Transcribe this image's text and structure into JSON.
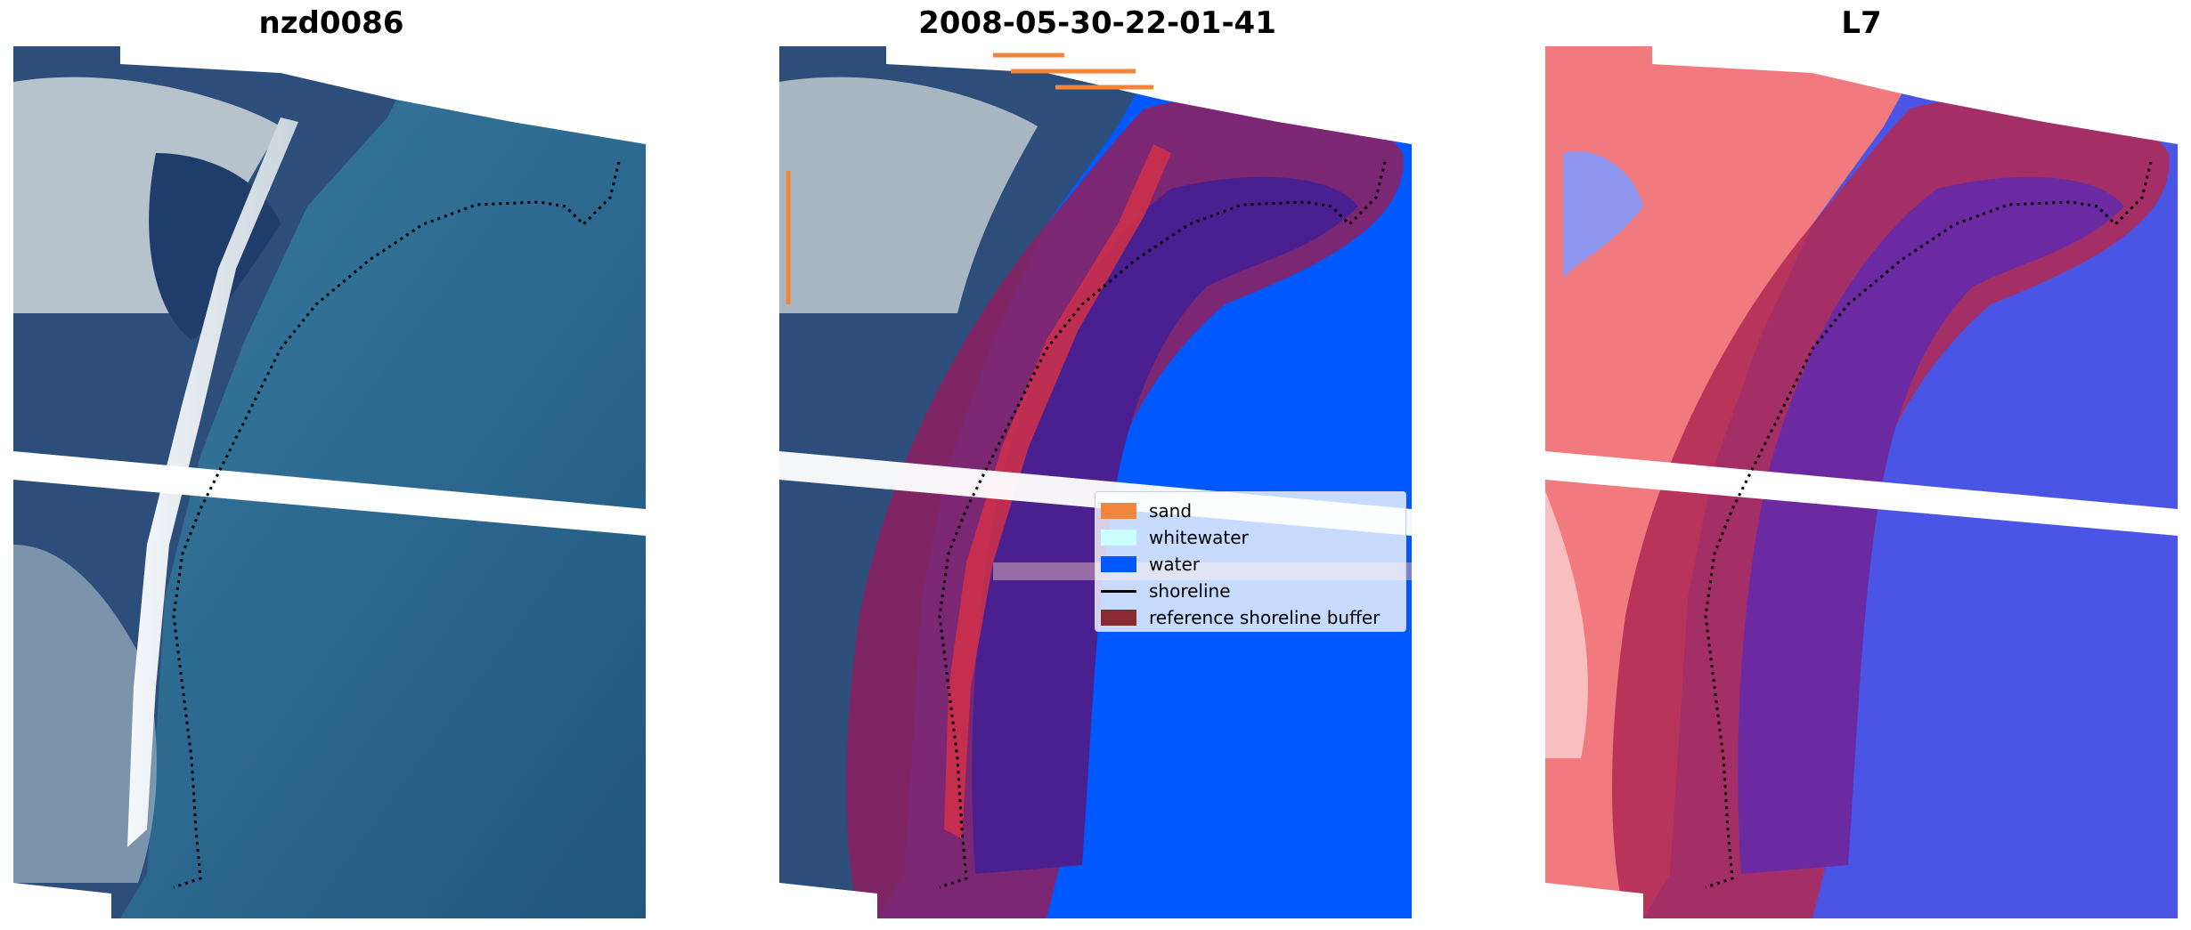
{
  "panels": [
    {
      "title": "nzd0086"
    },
    {
      "title": "2008-05-30-22-01-41"
    },
    {
      "title": "L7"
    }
  ],
  "legend": {
    "items": [
      {
        "label": "sand",
        "color": "#f2853c",
        "kind": "patch"
      },
      {
        "label": "whitewater",
        "color": "#ccffff",
        "kind": "patch"
      },
      {
        "label": "water",
        "color": "#0059ff",
        "kind": "patch"
      },
      {
        "label": "shoreline",
        "color": "#000000",
        "kind": "line"
      },
      {
        "label": "reference shoreline buffer",
        "color": "#8b2a30",
        "kind": "patch"
      }
    ]
  },
  "colors": {
    "sea": "#2a6391",
    "land_dark": "#1f3f73",
    "land_light": "#b9c3cc",
    "classified_water": "#0059ff",
    "buffer": "#8c2060",
    "buffer_water": "#4a2090",
    "index_red": "#e6333a",
    "index_blue": "#3b43d6"
  }
}
